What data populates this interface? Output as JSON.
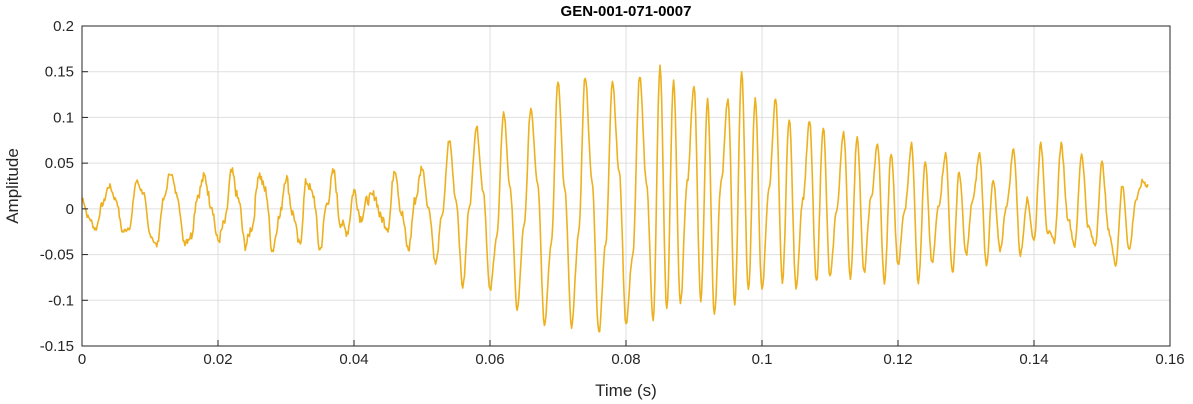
{
  "chart_data": {
    "type": "line",
    "title": "GEN-001-071-0007",
    "xlabel": "Time (s)",
    "ylabel": "Amplitude",
    "xlim": [
      0,
      0.16
    ],
    "ylim": [
      -0.15,
      0.2
    ],
    "x_ticks": [
      0,
      0.02,
      0.04,
      0.06,
      0.08,
      0.1,
      0.12,
      0.14,
      0.16
    ],
    "x_tick_labels": [
      "0",
      "0.02",
      "0.04",
      "0.06",
      "0.08",
      "0.1",
      "0.12",
      "0.14",
      "0.16"
    ],
    "y_ticks": [
      -0.15,
      -0.1,
      -0.05,
      0,
      0.05,
      0.1,
      0.15,
      0.2
    ],
    "y_tick_labels": [
      "-0.15",
      "-0.1",
      "-0.05",
      "0",
      "0.05",
      "0.1",
      "0.15",
      "0.2"
    ],
    "grid": true,
    "series": [
      {
        "color": "#EDB120",
        "x_start": 0,
        "x_end": 0.1568,
        "points": [
          [
            0.0,
            0.012
          ],
          [
            0.001,
            -0.01
          ],
          [
            0.002,
            -0.022
          ],
          [
            0.003,
            0.005
          ],
          [
            0.004,
            0.025
          ],
          [
            0.005,
            0.01
          ],
          [
            0.006,
            -0.025
          ],
          [
            0.007,
            -0.02
          ],
          [
            0.008,
            0.03
          ],
          [
            0.009,
            0.018
          ],
          [
            0.01,
            -0.028
          ],
          [
            0.011,
            -0.04
          ],
          [
            0.012,
            0.01
          ],
          [
            0.013,
            0.04
          ],
          [
            0.014,
            0.015
          ],
          [
            0.015,
            -0.035
          ],
          [
            0.016,
            -0.03
          ],
          [
            0.017,
            0.015
          ],
          [
            0.018,
            0.035
          ],
          [
            0.019,
            0.005
          ],
          [
            0.02,
            -0.035
          ],
          [
            0.021,
            -0.015
          ],
          [
            0.022,
            0.04
          ],
          [
            0.023,
            0.01
          ],
          [
            0.024,
            -0.04
          ],
          [
            0.025,
            -0.02
          ],
          [
            0.026,
            0.038
          ],
          [
            0.027,
            0.02
          ],
          [
            0.028,
            -0.045
          ],
          [
            0.029,
            -0.01
          ],
          [
            0.03,
            0.035
          ],
          [
            0.031,
            -0.005
          ],
          [
            0.032,
            -0.04
          ],
          [
            0.033,
            0.03
          ],
          [
            0.034,
            0.015
          ],
          [
            0.035,
            -0.045
          ],
          [
            0.036,
            0.005
          ],
          [
            0.037,
            0.04
          ],
          [
            0.038,
            -0.015
          ],
          [
            0.039,
            -0.025
          ],
          [
            0.04,
            0.02
          ],
          [
            0.041,
            -0.01
          ],
          [
            0.042,
            0.01
          ],
          [
            0.043,
            0.015
          ],
          [
            0.044,
            -0.01
          ],
          [
            0.045,
            -0.02
          ],
          [
            0.046,
            0.045
          ],
          [
            0.047,
            -0.005
          ],
          [
            0.048,
            -0.045
          ],
          [
            0.049,
            0.01
          ],
          [
            0.05,
            0.045
          ],
          [
            0.051,
            0.0
          ],
          [
            0.052,
            -0.06
          ],
          [
            0.053,
            -0.005
          ],
          [
            0.054,
            0.075
          ],
          [
            0.055,
            0.01
          ],
          [
            0.056,
            -0.085
          ],
          [
            0.057,
            0.005
          ],
          [
            0.058,
            0.09
          ],
          [
            0.059,
            0.02
          ],
          [
            0.06,
            -0.09
          ],
          [
            0.061,
            -0.03
          ],
          [
            0.062,
            0.105
          ],
          [
            0.063,
            0.02
          ],
          [
            0.064,
            -0.11
          ],
          [
            0.065,
            -0.02
          ],
          [
            0.066,
            0.11
          ],
          [
            0.067,
            0.03
          ],
          [
            0.068,
            -0.125
          ],
          [
            0.069,
            -0.04
          ],
          [
            0.07,
            0.14
          ],
          [
            0.071,
            0.02
          ],
          [
            0.072,
            -0.13
          ],
          [
            0.073,
            -0.03
          ],
          [
            0.074,
            0.145
          ],
          [
            0.075,
            0.03
          ],
          [
            0.076,
            -0.135
          ],
          [
            0.077,
            -0.04
          ],
          [
            0.078,
            0.14
          ],
          [
            0.079,
            0.04
          ],
          [
            0.08,
            -0.125
          ],
          [
            0.081,
            -0.05
          ],
          [
            0.082,
            0.145
          ],
          [
            0.083,
            0.03
          ],
          [
            0.084,
            -0.12
          ],
          [
            0.085,
            0.155
          ],
          [
            0.086,
            -0.11
          ],
          [
            0.087,
            0.14
          ],
          [
            0.088,
            -0.105
          ],
          [
            0.089,
            0.03
          ],
          [
            0.09,
            0.135
          ],
          [
            0.091,
            -0.1
          ],
          [
            0.092,
            0.12
          ],
          [
            0.093,
            -0.115
          ],
          [
            0.094,
            0.03
          ],
          [
            0.095,
            0.12
          ],
          [
            0.096,
            -0.105
          ],
          [
            0.097,
            0.15
          ],
          [
            0.098,
            -0.09
          ],
          [
            0.099,
            0.12
          ],
          [
            0.1,
            -0.09
          ],
          [
            0.101,
            0.02
          ],
          [
            0.102,
            0.12
          ],
          [
            0.103,
            -0.08
          ],
          [
            0.104,
            0.1
          ],
          [
            0.105,
            -0.085
          ],
          [
            0.106,
            0.01
          ],
          [
            0.107,
            0.095
          ],
          [
            0.108,
            -0.08
          ],
          [
            0.109,
            0.09
          ],
          [
            0.11,
            -0.075
          ],
          [
            0.111,
            0.0
          ],
          [
            0.112,
            0.085
          ],
          [
            0.113,
            -0.075
          ],
          [
            0.114,
            0.08
          ],
          [
            0.115,
            -0.07
          ],
          [
            0.116,
            0.01
          ],
          [
            0.117,
            0.07
          ],
          [
            0.118,
            -0.08
          ],
          [
            0.119,
            0.06
          ],
          [
            0.12,
            -0.06
          ],
          [
            0.121,
            0.0
          ],
          [
            0.122,
            0.07
          ],
          [
            0.123,
            -0.08
          ],
          [
            0.124,
            0.05
          ],
          [
            0.125,
            -0.06
          ],
          [
            0.126,
            0.005
          ],
          [
            0.127,
            0.06
          ],
          [
            0.128,
            -0.07
          ],
          [
            0.129,
            0.04
          ],
          [
            0.13,
            -0.05
          ],
          [
            0.131,
            0.01
          ],
          [
            0.132,
            0.06
          ],
          [
            0.133,
            -0.06
          ],
          [
            0.134,
            0.03
          ],
          [
            0.135,
            -0.045
          ],
          [
            0.136,
            0.005
          ],
          [
            0.137,
            0.065
          ],
          [
            0.138,
            -0.05
          ],
          [
            0.139,
            0.01
          ],
          [
            0.14,
            -0.035
          ],
          [
            0.141,
            0.07
          ],
          [
            0.142,
            -0.025
          ],
          [
            0.143,
            -0.035
          ],
          [
            0.144,
            0.07
          ],
          [
            0.145,
            -0.01
          ],
          [
            0.146,
            -0.04
          ],
          [
            0.147,
            0.06
          ],
          [
            0.148,
            -0.02
          ],
          [
            0.149,
            -0.04
          ],
          [
            0.15,
            0.05
          ],
          [
            0.151,
            -0.025
          ],
          [
            0.152,
            -0.06
          ],
          [
            0.153,
            0.025
          ],
          [
            0.154,
            -0.045
          ],
          [
            0.155,
            0.01
          ],
          [
            0.156,
            0.03
          ],
          [
            0.1568,
            0.025
          ]
        ]
      }
    ]
  }
}
